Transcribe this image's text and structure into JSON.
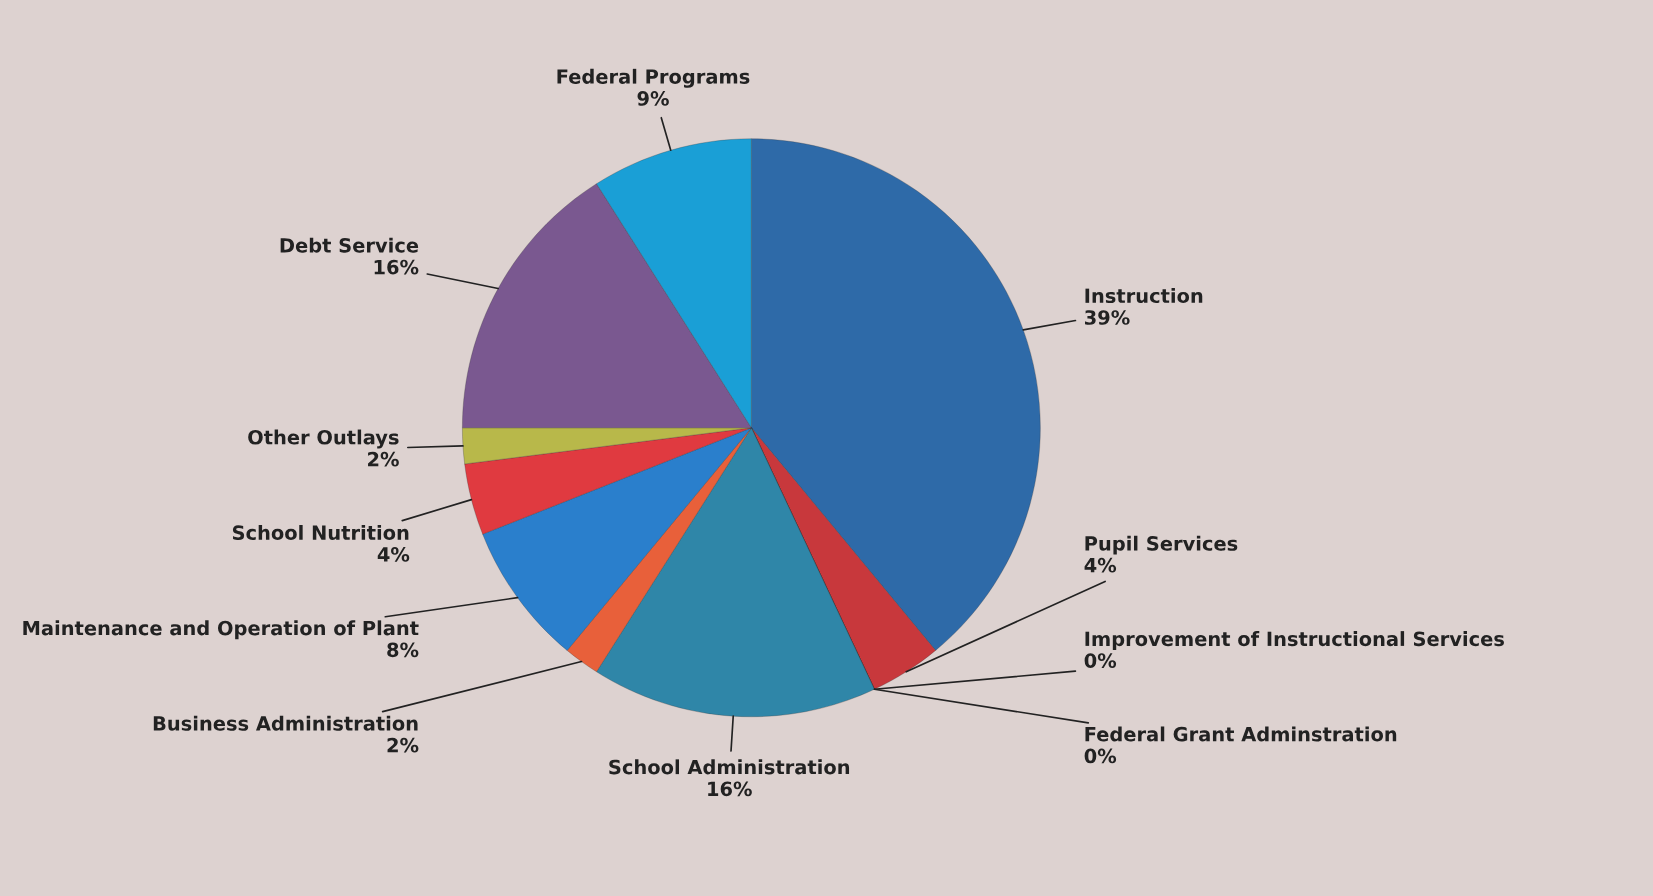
{
  "chart_data": {
    "type": "pie",
    "categories": [
      "Instruction",
      "Pupil Services",
      "Improvement of Instructional Services",
      "Federal Grant Adminstration",
      "School Administration",
      "Business Administration",
      "Maintenance and Operation of Plant",
      "School Nutrition",
      "Other Outlays",
      "Debt Service",
      "Federal Programs"
    ],
    "values": [
      39,
      4,
      0,
      0,
      16,
      2,
      8,
      4,
      2,
      16,
      9
    ],
    "value_labels": [
      "39%",
      "4%",
      "0%",
      "0%",
      "16%",
      "2%",
      "8%",
      "4%",
      "2%",
      "16%",
      "9%"
    ],
    "colors": [
      "#2e6aa8",
      "#c8383c",
      "#b8b050",
      "#7a5a90",
      "#2f86a8",
      "#e8603a",
      "#2a7fcc",
      "#e03a40",
      "#b8b84a",
      "#7a5890",
      "#1a9fd6"
    ]
  }
}
